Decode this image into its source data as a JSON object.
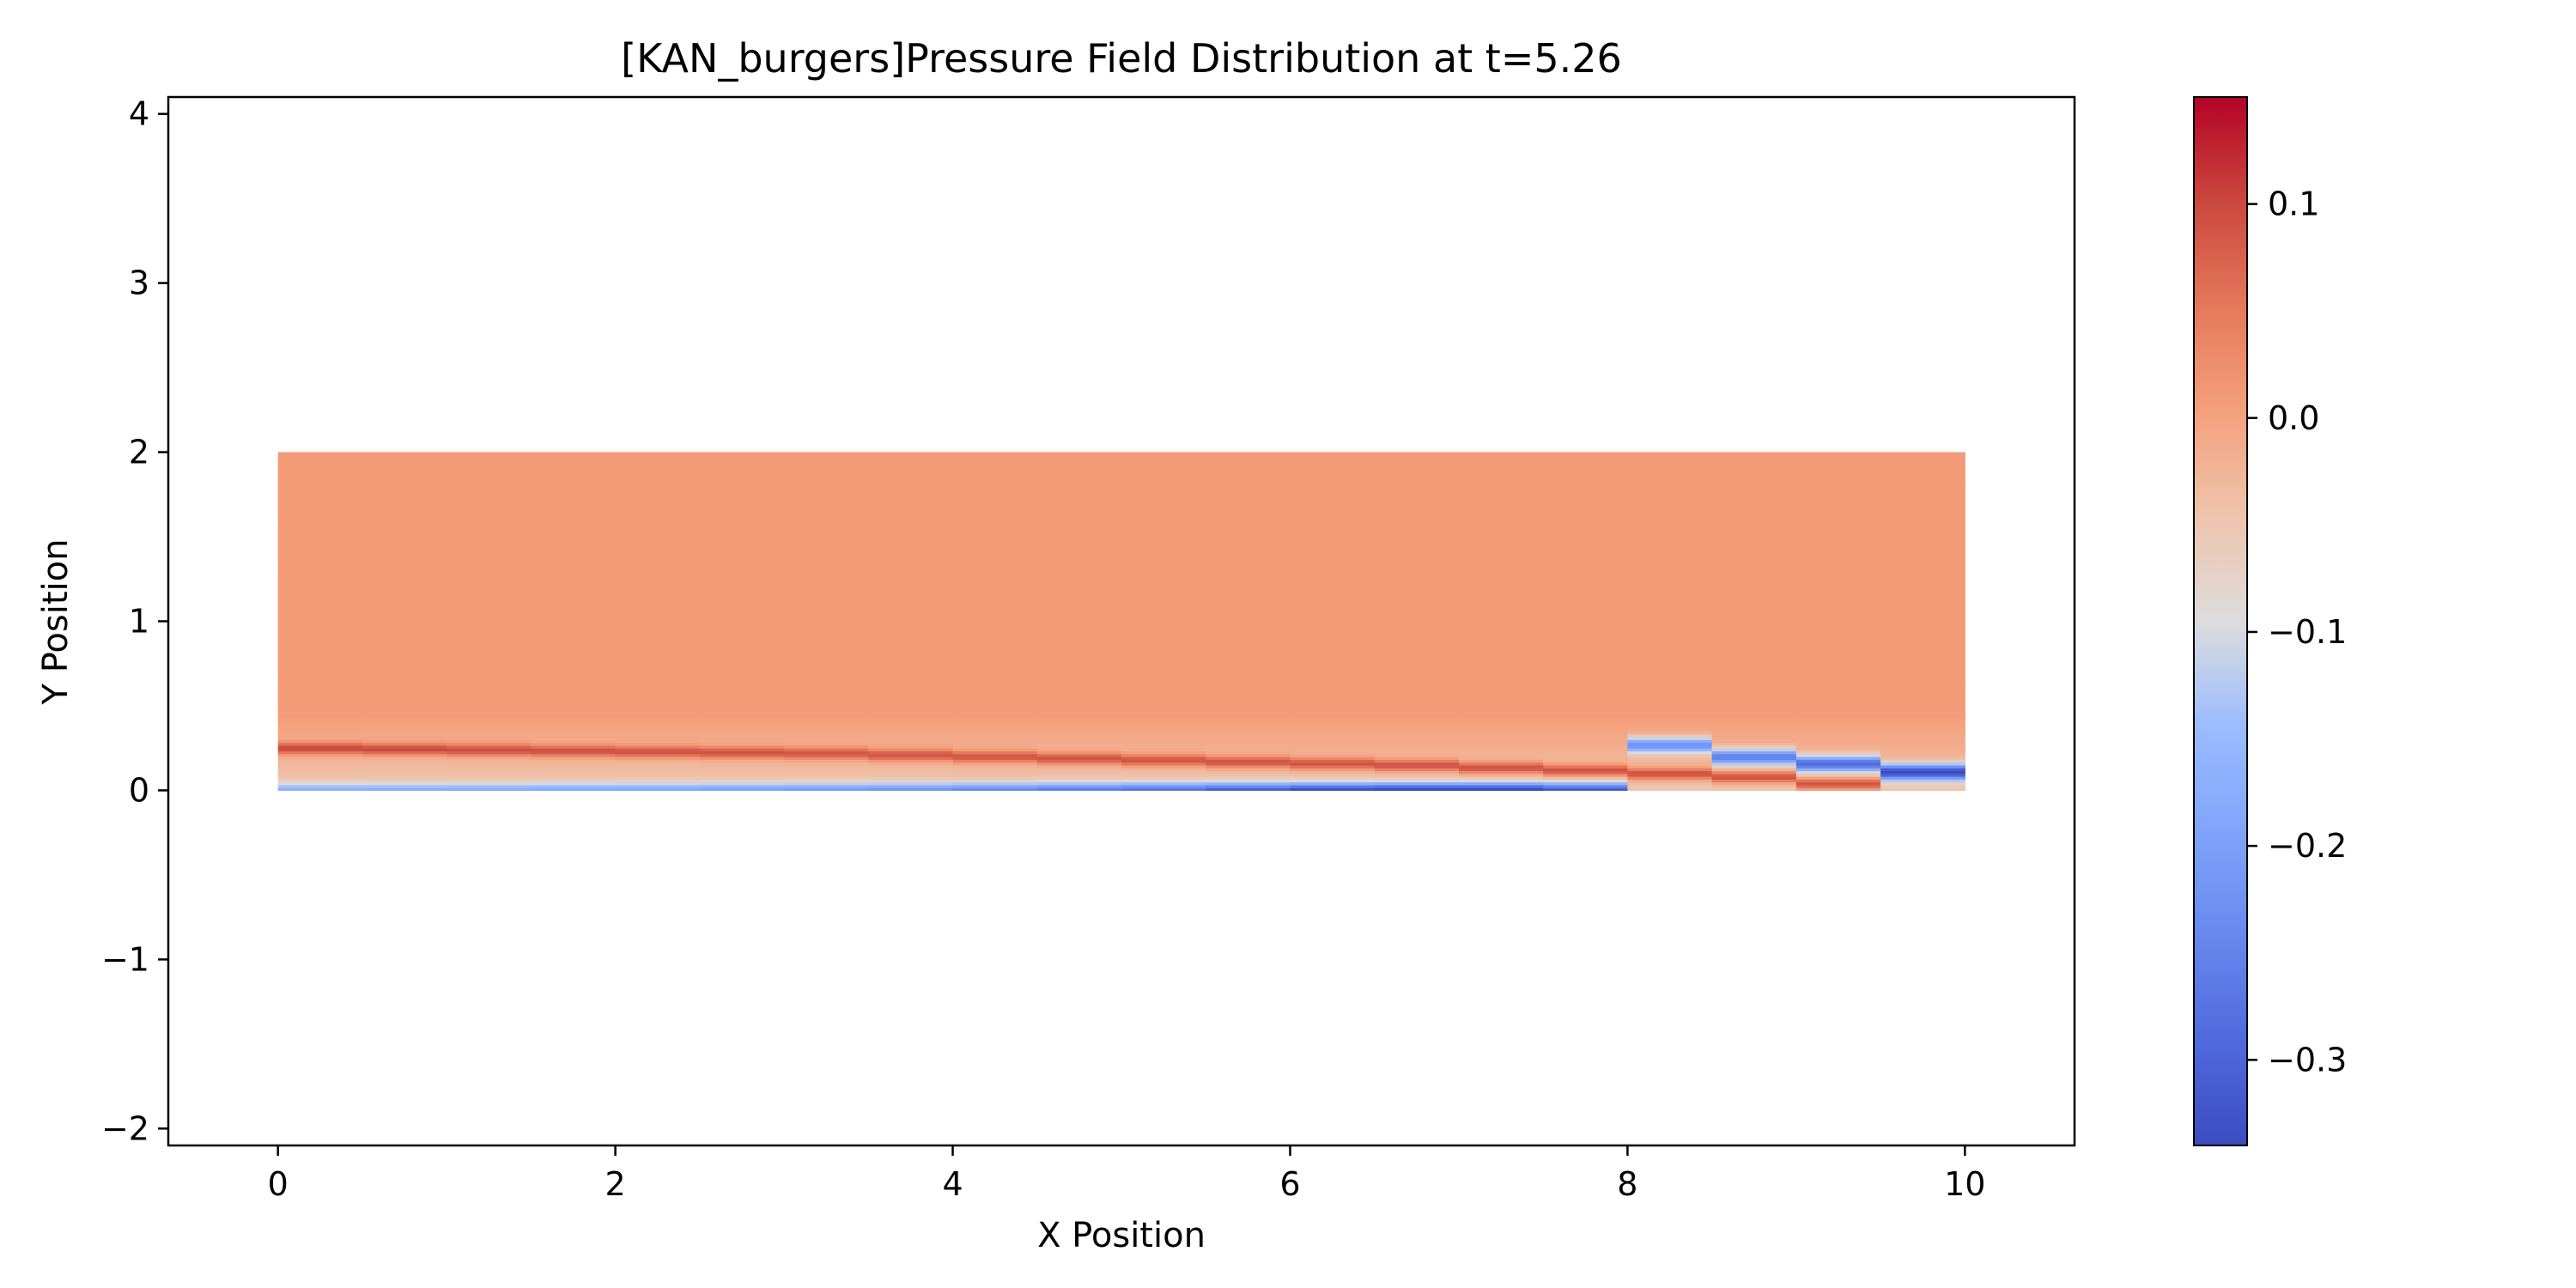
{
  "chart_data": {
    "type": "heatmap",
    "title": "[KAN_burgers]Pressure Field Distribution at t=5.26",
    "xlabel": "X Position",
    "ylabel": "Y Position",
    "xlim": [
      -0.65,
      10.65
    ],
    "ylim": [
      -2.1,
      4.1
    ],
    "x_ticks": [
      0,
      2,
      4,
      6,
      8,
      10
    ],
    "x_tick_labels": [
      "0",
      "2",
      "4",
      "6",
      "8",
      "10"
    ],
    "y_ticks": [
      -2,
      -1,
      0,
      1,
      2,
      3,
      4
    ],
    "y_tick_labels": [
      "−2",
      "−1",
      "0",
      "1",
      "2",
      "3",
      "4"
    ],
    "grid": false,
    "legend": "none",
    "colormap": "coolwarm",
    "domain_x": [
      0,
      10
    ],
    "domain_y": [
      0,
      2
    ],
    "x_bins": 20,
    "upper_field_value": 0.01,
    "field_columns": [
      {
        "x": [
          0.0,
          0.5
        ],
        "peak_y": 0.25,
        "peak_value": 0.13,
        "min_y": 0.0,
        "min_value": -0.11
      },
      {
        "x": [
          0.5,
          1.0
        ],
        "peak_y": 0.245,
        "peak_value": 0.128,
        "min_y": 0.0,
        "min_value": -0.115
      },
      {
        "x": [
          1.0,
          1.5
        ],
        "peak_y": 0.24,
        "peak_value": 0.126,
        "min_y": 0.0,
        "min_value": -0.12
      },
      {
        "x": [
          1.5,
          2.0
        ],
        "peak_y": 0.235,
        "peak_value": 0.124,
        "min_y": 0.0,
        "min_value": -0.125
      },
      {
        "x": [
          2.0,
          2.5
        ],
        "peak_y": 0.23,
        "peak_value": 0.122,
        "min_y": 0.0,
        "min_value": -0.13
      },
      {
        "x": [
          2.5,
          3.0
        ],
        "peak_y": 0.225,
        "peak_value": 0.12,
        "min_y": 0.0,
        "min_value": -0.14
      },
      {
        "x": [
          3.0,
          3.5
        ],
        "peak_y": 0.22,
        "peak_value": 0.12,
        "min_y": 0.0,
        "min_value": -0.15
      },
      {
        "x": [
          3.5,
          4.0
        ],
        "peak_y": 0.21,
        "peak_value": 0.12,
        "min_y": 0.0,
        "min_value": -0.16
      },
      {
        "x": [
          4.0,
          4.5
        ],
        "peak_y": 0.2,
        "peak_value": 0.122,
        "min_y": 0.0,
        "min_value": -0.18
      },
      {
        "x": [
          4.5,
          5.0
        ],
        "peak_y": 0.19,
        "peak_value": 0.124,
        "min_y": 0.0,
        "min_value": -0.2
      },
      {
        "x": [
          5.0,
          5.5
        ],
        "peak_y": 0.18,
        "peak_value": 0.126,
        "min_y": 0.0,
        "min_value": -0.22
      },
      {
        "x": [
          5.5,
          6.0
        ],
        "peak_y": 0.17,
        "peak_value": 0.128,
        "min_y": 0.0,
        "min_value": -0.25
      },
      {
        "x": [
          6.0,
          6.5
        ],
        "peak_y": 0.16,
        "peak_value": 0.13,
        "min_y": 0.0,
        "min_value": -0.28
      },
      {
        "x": [
          6.5,
          7.0
        ],
        "peak_y": 0.15,
        "peak_value": 0.132,
        "min_y": 0.0,
        "min_value": -0.3
      },
      {
        "x": [
          7.0,
          7.5
        ],
        "peak_y": 0.135,
        "peak_value": 0.134,
        "min_y": 0.0,
        "min_value": -0.3
      },
      {
        "x": [
          7.5,
          8.0
        ],
        "peak_y": 0.12,
        "peak_value": 0.136,
        "min_y": 0.0,
        "min_value": -0.26
      },
      {
        "x": [
          8.0,
          8.5
        ],
        "peak_y": 0.1,
        "peak_value": 0.138,
        "min_y": 0.27,
        "min_value": -0.2
      },
      {
        "x": [
          8.5,
          9.0
        ],
        "peak_y": 0.08,
        "peak_value": 0.14,
        "min_y": 0.2,
        "min_value": -0.22
      },
      {
        "x": [
          9.0,
          9.5
        ],
        "peak_y": 0.04,
        "peak_value": 0.142,
        "min_y": 0.16,
        "min_value": -0.25
      },
      {
        "x": [
          9.5,
          10.0
        ],
        "peak_y": 0.0,
        "peak_value": 0.0,
        "min_y": 0.11,
        "min_value": -0.3
      }
    ],
    "colorbar": {
      "range": [
        -0.34,
        0.15
      ],
      "ticks": [
        0.1,
        0.0,
        -0.1,
        -0.2,
        -0.3
      ],
      "tick_labels": [
        "0.1",
        "0.0",
        "−0.1",
        "−0.2",
        "−0.3"
      ]
    }
  }
}
